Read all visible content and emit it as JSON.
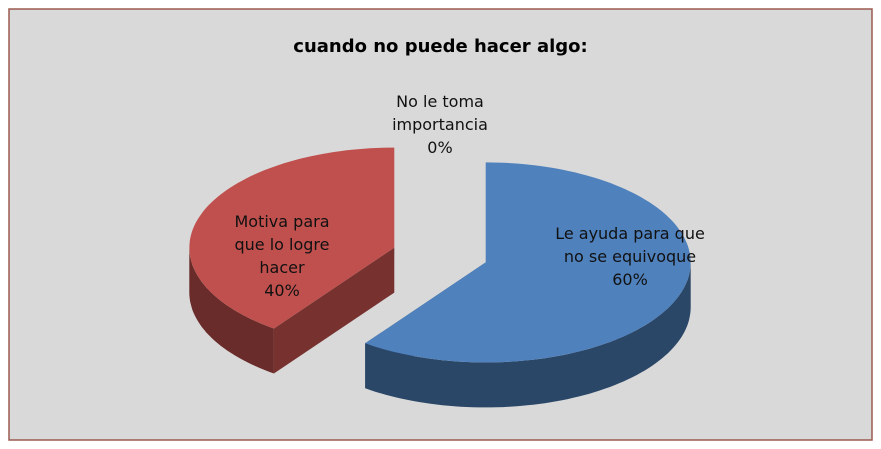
{
  "chart_data": {
    "type": "pie",
    "title": "cuando no puede hacer algo:",
    "categories": [
      "Le ayuda para que no se equivoque",
      "Motiva para que lo logre hacer",
      "No le toma importancia"
    ],
    "values": [
      60,
      40,
      0
    ],
    "value_labels": [
      "60%",
      "40%",
      "0%"
    ],
    "colors": [
      "#4f81bd",
      "#c0504d",
      "#9bbb59"
    ],
    "three_d": true,
    "exploded": true
  }
}
